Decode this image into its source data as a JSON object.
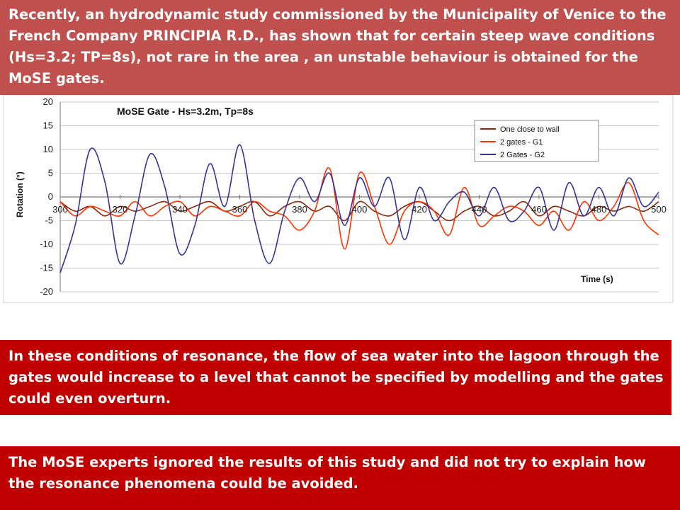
{
  "slide": {
    "banner_top": "Recently, an hydrodynamic study commissioned by the Municipality of Venice to the French Company PRINCIPIA  R.D., has shown that for certain steep wave conditions (Hs=3.2; TP=8s), not rare in the area , an unstable behaviour is obtained for the MoSE gates.",
    "banner_mid": "In these conditions of resonance, the flow of sea water into the lagoon through the gates would increase to a level that cannot be specified by modelling and the gates could even overturn.",
    "banner_bottom": "The MoSE experts ignored the results of this study and did not try to explain how the resonance phenomena could be avoided.",
    "colors": {
      "banner_top_bg": "#c0504d",
      "banner_red_bg": "#c00000",
      "banner_text": "#ffffff"
    }
  },
  "chart_data": {
    "type": "line",
    "title": "MoSE Gate - Hs=3.2m, Tp=8s",
    "xlabel": "Time (s)",
    "ylabel": "Rotation (°)",
    "xlim": [
      300,
      500
    ],
    "ylim": [
      -20,
      20
    ],
    "x_ticks": [
      300,
      320,
      340,
      360,
      380,
      400,
      420,
      440,
      460,
      480,
      500
    ],
    "y_ticks": [
      20,
      15,
      10,
      5,
      0,
      -5,
      -10,
      -15,
      -20
    ],
    "grid": true,
    "legend_position": "top-right",
    "series": [
      {
        "name": "One close to wall",
        "color": "#8b2a0e",
        "x": [
          300,
          305,
          310,
          315,
          320,
          325,
          330,
          335,
          340,
          345,
          350,
          355,
          360,
          365,
          370,
          375,
          380,
          385,
          390,
          395,
          400,
          405,
          410,
          415,
          420,
          425,
          430,
          435,
          440,
          445,
          450,
          455,
          460,
          465,
          470,
          475,
          480,
          485,
          490,
          495,
          500
        ],
        "y": [
          -1,
          -3,
          -2,
          -4,
          -2,
          -3,
          -2,
          -1,
          -3,
          -2,
          -1,
          -3,
          -2,
          -1,
          -4,
          -2,
          -1,
          -3,
          -2,
          -5,
          -1,
          -3,
          -4,
          -2,
          -1,
          -3,
          -5,
          -3,
          -2,
          -4,
          -3,
          -1,
          -4,
          -2,
          -3,
          -4,
          -2,
          -3,
          -2,
          -3,
          -1
        ]
      },
      {
        "name": "2 gates - G1",
        "color": "#ff3300",
        "x": [
          300,
          305,
          310,
          315,
          320,
          325,
          330,
          335,
          340,
          345,
          350,
          355,
          360,
          365,
          370,
          375,
          380,
          385,
          390,
          395,
          400,
          405,
          410,
          415,
          420,
          425,
          430,
          435,
          440,
          445,
          450,
          455,
          460,
          465,
          470,
          475,
          480,
          485,
          490,
          495,
          500
        ],
        "y": [
          -1,
          -4,
          -2,
          -3,
          -4,
          -1,
          -4,
          -2,
          -1,
          -4,
          -2,
          -3,
          -4,
          -1,
          -3,
          -4,
          -7,
          -3,
          6,
          -11,
          5,
          -2,
          -10,
          -3,
          -1,
          -3,
          -8,
          2,
          -6,
          -4,
          -2,
          -3,
          -6,
          -3,
          -7,
          -1,
          -5,
          -2,
          3,
          -5,
          -8
        ]
      },
      {
        "name": "2 Gates - G2",
        "color": "#3333a0",
        "x": [
          300,
          305,
          310,
          315,
          320,
          325,
          330,
          335,
          340,
          345,
          350,
          355,
          360,
          365,
          370,
          375,
          380,
          385,
          390,
          395,
          400,
          405,
          410,
          415,
          420,
          425,
          430,
          435,
          440,
          445,
          450,
          455,
          460,
          465,
          470,
          475,
          480,
          485,
          490,
          495,
          500
        ],
        "y": [
          -16,
          -6,
          10,
          3,
          -14,
          -4,
          9,
          2,
          -12,
          -6,
          7,
          -2,
          11,
          -5,
          -14,
          -3,
          4,
          -1,
          5,
          -6,
          4,
          -2,
          4,
          -9,
          2,
          -5,
          -1,
          1,
          -4,
          2,
          -5,
          -3,
          2,
          -7,
          3,
          -4,
          2,
          -4,
          4,
          -2,
          1
        ]
      }
    ]
  }
}
